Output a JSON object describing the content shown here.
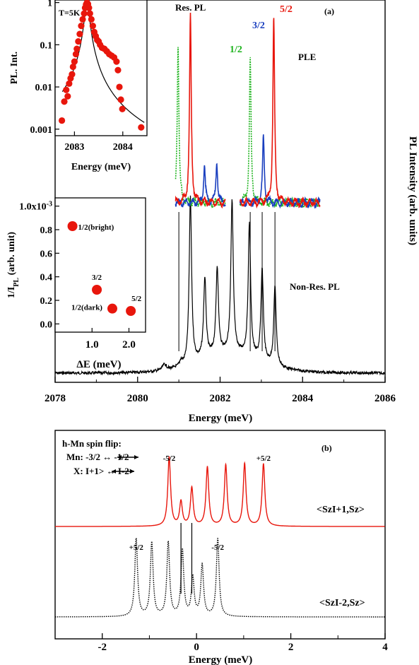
{
  "colors": {
    "red": "#e8160c",
    "green": "#1db31d",
    "blue": "#1a3fbf",
    "black": "#000000"
  },
  "chart_data": [
    {
      "id": "a",
      "type": "line",
      "panel_label": "(a)",
      "xlabel": "Energy (meV)",
      "ylabel": "PL Intensity (arb. units)",
      "xlim": [
        2078,
        2086
      ],
      "xticks": [
        2078,
        2080,
        2082,
        2084,
        2086
      ],
      "labels": {
        "res_pl": "Res. PL",
        "ple": "PLE",
        "nonres_pl": "Non-Res. PL",
        "half": "1/2",
        "three_half": "3/2",
        "five_half": "5/2"
      },
      "nonres_pl_peaks": [
        {
          "x": 2081.05,
          "h": 0.03
        },
        {
          "x": 2081.28,
          "h": 1.0
        },
        {
          "x": 2081.63,
          "h": 0.48
        },
        {
          "x": 2081.93,
          "h": 0.52
        },
        {
          "x": 2082.29,
          "h": 0.91
        },
        {
          "x": 2082.71,
          "h": 0.8
        },
        {
          "x": 2083.02,
          "h": 0.55
        },
        {
          "x": 2083.33,
          "h": 0.48
        }
      ],
      "series": [
        {
          "name": "1/2",
          "color": "green",
          "style": "dotted",
          "peaks": [
            {
              "x": 2080.98,
              "h": 0.85
            },
            {
              "x": 2082.73,
              "h": 0.77
            }
          ]
        },
        {
          "name": "3/2",
          "color": "blue",
          "style": "solid",
          "peaks": [
            {
              "x": 2081.62,
              "h": 0.2
            },
            {
              "x": 2081.92,
              "h": 0.22
            },
            {
              "x": 2083.05,
              "h": 0.35
            }
          ]
        },
        {
          "name": "5/2",
          "color": "red",
          "style": "solid",
          "peaks": [
            {
              "x": 2081.28,
              "h": 1.0
            },
            {
              "x": 2083.3,
              "h": 1.0
            }
          ]
        }
      ]
    },
    {
      "id": "inset1",
      "type": "scatter",
      "annotation": "T=5K",
      "xlabel": "Energy (meV)",
      "ylabel": "PL. Int.",
      "yscale": "log",
      "xlim": [
        2082.6,
        2084.5
      ],
      "ylim": [
        0.0007,
        1.15
      ],
      "xticks": [
        2083,
        2084
      ],
      "yticks": [
        {
          "v": 0.001,
          "label": "0.001"
        },
        {
          "v": 0.01,
          "label": "0.01"
        },
        {
          "v": 0.1,
          "label": "0.1"
        },
        {
          "v": 1,
          "label": "1"
        }
      ],
      "points": [
        [
          2082.74,
          0.0016
        ],
        [
          2082.79,
          0.0045
        ],
        [
          2082.83,
          0.0085
        ],
        [
          2082.86,
          0.006
        ],
        [
          2082.89,
          0.012
        ],
        [
          2082.92,
          0.016
        ],
        [
          2082.95,
          0.02
        ],
        [
          2082.97,
          0.03
        ],
        [
          2083.0,
          0.04
        ],
        [
          2083.03,
          0.06
        ],
        [
          2083.05,
          0.08
        ],
        [
          2083.08,
          0.12
        ],
        [
          2083.11,
          0.18
        ],
        [
          2083.14,
          0.28
        ],
        [
          2083.17,
          0.4
        ],
        [
          2083.2,
          0.55
        ],
        [
          2083.22,
          0.75
        ],
        [
          2083.24,
          0.9
        ],
        [
          2083.26,
          1.0
        ],
        [
          2083.28,
          0.92
        ],
        [
          2083.3,
          0.75
        ],
        [
          2083.32,
          0.55
        ],
        [
          2083.35,
          0.4
        ],
        [
          2083.38,
          0.28
        ],
        [
          2083.41,
          0.2
        ],
        [
          2083.44,
          0.16
        ],
        [
          2083.47,
          0.13
        ],
        [
          2083.5,
          0.12
        ],
        [
          2083.53,
          0.1
        ],
        [
          2083.57,
          0.085
        ],
        [
          2083.62,
          0.08
        ],
        [
          2083.67,
          0.07
        ],
        [
          2083.72,
          0.06
        ],
        [
          2083.77,
          0.055
        ],
        [
          2083.82,
          0.05
        ],
        [
          2083.87,
          0.04
        ],
        [
          2083.9,
          0.025
        ],
        [
          2083.93,
          0.01
        ],
        [
          2083.96,
          0.005
        ],
        [
          2083.99,
          0.003
        ],
        [
          2084.38,
          0.0011
        ]
      ],
      "fit": {
        "type": "lorentzian",
        "center": 2083.26,
        "width": 0.045
      }
    },
    {
      "id": "inset2",
      "type": "scatter",
      "xlabel": "ΔE (meV)",
      "ylabel": "1/I_PL (arb. unit)",
      "xlim": [
        0,
        2.45
      ],
      "ylim": [
        -0.07,
        1.07
      ],
      "xticks": [
        1.0,
        2.0
      ],
      "yticks": [
        {
          "v": 0.0,
          "label": "0.0"
        },
        {
          "v": 0.2,
          "label": "0.2"
        },
        {
          "v": 0.4,
          "label": "0.4"
        },
        {
          "v": 0.6,
          "label": "0.6"
        },
        {
          "v": 0.8,
          "label": "0.8"
        },
        {
          "v": 1.0,
          "label": "1.0x10"
        }
      ],
      "ytick_exponent": "-3",
      "points": [
        {
          "x": 0.47,
          "y": 0.83,
          "label": "1/2(bright)"
        },
        {
          "x": 1.13,
          "y": 0.29,
          "label": "3/2"
        },
        {
          "x": 1.55,
          "y": 0.13,
          "label": "1/2(dark)"
        },
        {
          "x": 2.05,
          "y": 0.11,
          "label": "5/2"
        }
      ]
    },
    {
      "id": "b",
      "type": "line",
      "panel_label": "(b)",
      "xlabel": "Energy (meV)",
      "xlim": [
        -3,
        4
      ],
      "xticks": [
        -2,
        0,
        2,
        4
      ],
      "annotation": {
        "title": "h-Mn spin flip:",
        "mn": "Mn: -3/2 ↔ -1/2",
        "x": "X: I+1> ↔ I-2>"
      },
      "series": [
        {
          "name": "<SzI+1,Sz>",
          "color": "red",
          "style": "solid",
          "peaks": [
            {
              "x": -0.58,
              "h": 1.0
            },
            {
              "x": -0.33,
              "h": 0.35
            },
            {
              "x": -0.1,
              "h": 0.55
            },
            {
              "x": 0.23,
              "h": 0.85
            },
            {
              "x": 0.62,
              "h": 0.88
            },
            {
              "x": 1.02,
              "h": 0.9
            },
            {
              "x": 1.42,
              "h": 0.9
            }
          ],
          "labels": [
            {
              "x": -0.58,
              "text": "-5/2"
            },
            {
              "x": 1.42,
              "text": "+5/2"
            }
          ]
        },
        {
          "name": "<SzI-2,Sz>",
          "color": "black",
          "style": "dotted",
          "peaks": [
            {
              "x": -1.28,
              "h": 1.0
            },
            {
              "x": -0.95,
              "h": 0.95
            },
            {
              "x": -0.6,
              "h": 0.95
            },
            {
              "x": -0.3,
              "h": 0.85
            },
            {
              "x": -0.08,
              "h": 0.5
            },
            {
              "x": 0.12,
              "h": 0.65
            },
            {
              "x": 0.45,
              "h": 1.0
            }
          ],
          "labels": [
            {
              "x": -1.28,
              "text": "+5/2"
            },
            {
              "x": 0.45,
              "text": "-5/2"
            }
          ]
        }
      ]
    }
  ]
}
